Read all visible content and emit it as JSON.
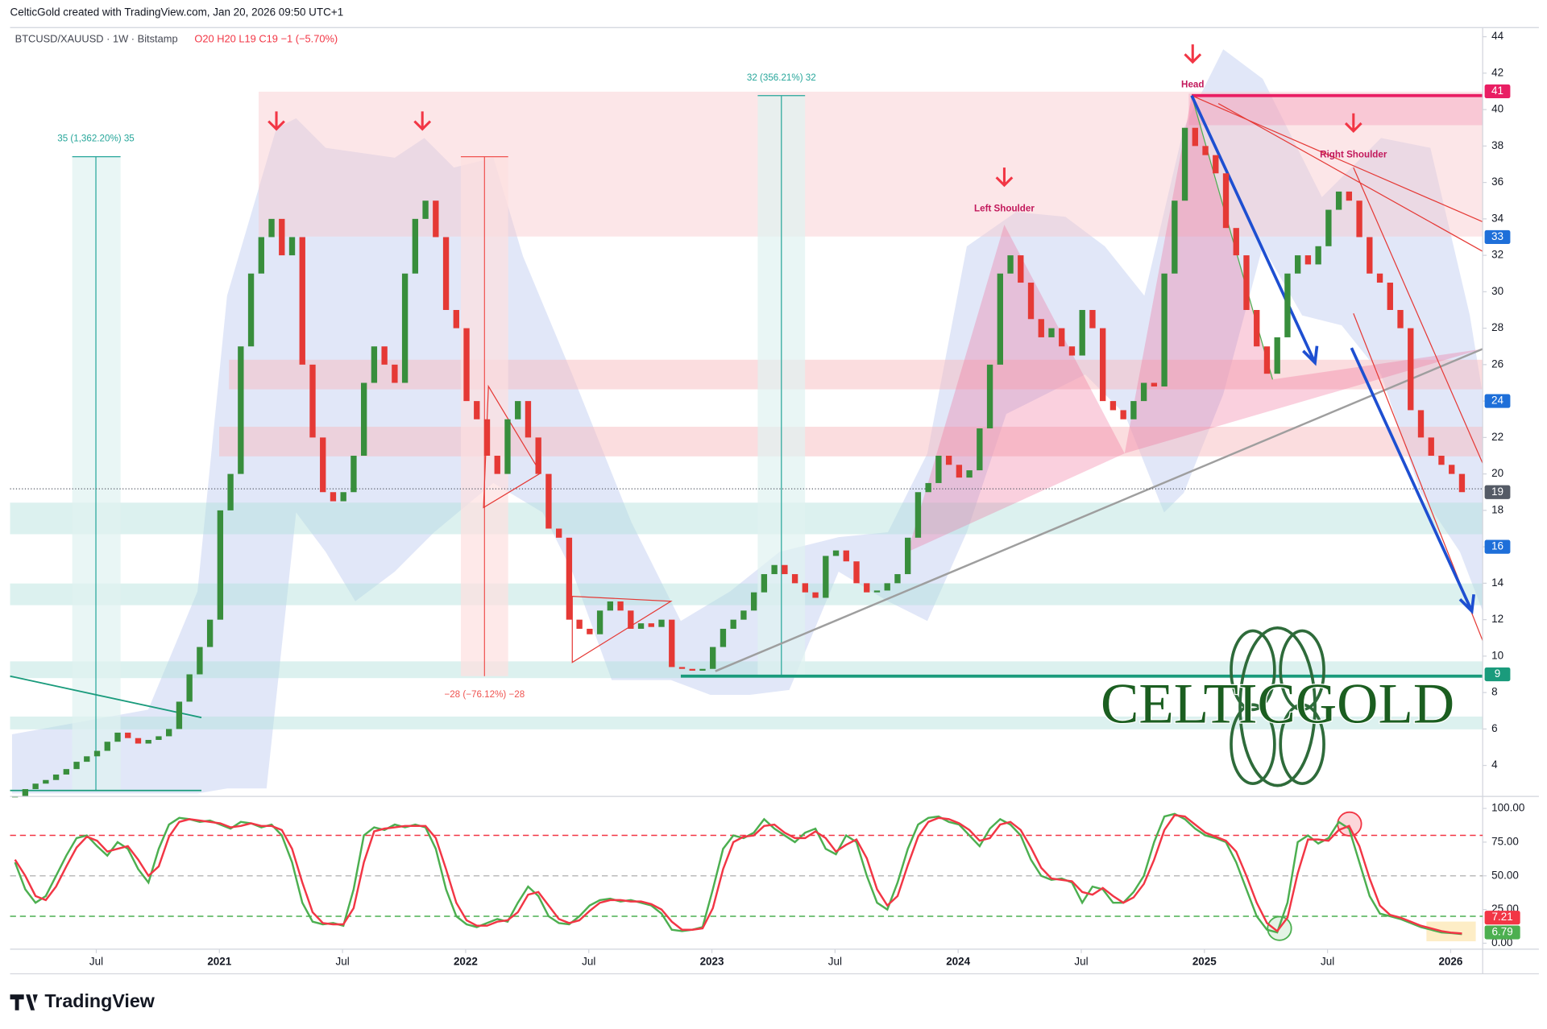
{
  "header": {
    "credit": "CelticGold created with TradingView.com, Jan 20, 2026 09:50 UTC+1",
    "symbol": "BTCUSD/XAUUSD · 1W · Bitstamp",
    "ohlc": "O20 H20 L19 C19 −1 (−5.70%)"
  },
  "chart_data": [
    {
      "type": "candlestick",
      "up_color": "#388e3c",
      "down_color": "#e53935",
      "values": [
        2.3,
        2.7,
        3.0,
        3.2,
        3.5,
        3.8,
        4.2,
        4.5,
        4.8,
        5.3,
        5.8,
        5.5,
        5.2,
        5.4,
        5.6,
        6.0,
        7.5,
        9.0,
        10.5,
        12.0,
        18,
        20,
        27,
        31,
        33,
        34,
        32,
        33,
        26,
        22,
        19,
        18.5,
        19,
        21,
        25,
        27,
        26,
        25,
        31,
        34,
        35,
        33,
        29,
        28,
        24,
        23,
        21,
        20,
        23,
        24,
        22,
        20,
        17,
        16.5,
        12,
        11.5,
        11.2,
        12.5,
        13,
        12.5,
        11.5,
        11.8,
        11.6,
        12,
        9.4,
        9.3,
        9.2,
        9.3,
        10.5,
        11.5,
        12,
        12.5,
        13.5,
        14.5,
        15,
        14.5,
        14,
        13.5,
        13.2,
        15.5,
        15.8,
        15.2,
        14,
        13.5,
        13.6,
        14,
        14.5,
        16.5,
        19,
        19.5,
        21,
        20.5,
        19.8,
        20.2,
        22.5,
        26,
        31,
        32,
        30.5,
        28.5,
        27.5,
        28,
        27,
        26.5,
        29,
        28,
        24,
        23.5,
        23,
        24,
        25,
        24.8,
        31,
        35,
        39,
        38,
        37.5,
        36.5,
        33.5,
        32,
        29,
        27,
        25.5,
        27.5,
        31,
        32,
        31.5,
        32.5,
        34.5,
        35.5,
        35,
        33,
        31,
        30.5,
        29,
        28,
        23.5,
        22,
        21,
        20.5,
        20,
        19
      ],
      "xlim": [
        2020.15,
        2026.13
      ],
      "xticks": [
        {
          "value": 2020.5,
          "label": "Jul"
        },
        2021,
        {
          "value": 2021.5,
          "label": "Jul"
        },
        2022,
        {
          "value": 2022.5,
          "label": "Jul"
        },
        2023,
        {
          "value": 2023.5,
          "label": "Jul"
        },
        2024,
        {
          "value": 2024.5,
          "label": "Jul"
        },
        2025,
        {
          "value": 2025.5,
          "label": "Jul"
        },
        2026
      ],
      "ylim": [
        2.3,
        44.5
      ],
      "yticks": [
        4,
        6,
        8,
        10,
        12,
        14,
        16,
        18,
        20,
        22,
        24,
        26,
        28,
        30,
        32,
        34,
        36,
        38,
        40,
        42,
        44
      ],
      "levels": [
        {
          "value": 41,
          "color": "#e91e63"
        },
        {
          "value": 33,
          "color": "#1e6fd9"
        },
        {
          "value": 24,
          "color": "#1e6fd9"
        },
        {
          "value": 19,
          "color": "#555b66"
        },
        {
          "value": 16,
          "color": "#1e6fd9"
        },
        {
          "value": 9,
          "color": "#1a9b7c"
        }
      ],
      "annotations": [
        "Head",
        "Left Shoulder",
        "Right Shoulder"
      ],
      "measurements": [
        "35 (1,362.20%) 35",
        "32 (356.21%) 32",
        "−28 (−76.12%) −28"
      ]
    },
    {
      "type": "line",
      "series": [
        {
          "color": "#4caf50",
          "values": [
            60,
            40,
            30,
            35,
            50,
            65,
            78,
            80,
            72,
            65,
            75,
            70,
            55,
            45,
            70,
            88,
            93,
            92,
            90,
            91,
            88,
            85,
            90,
            89,
            86,
            88,
            80,
            60,
            30,
            16,
            14,
            15,
            13,
            40,
            80,
            86,
            84,
            88,
            86,
            88,
            86,
            70,
            40,
            20,
            14,
            12,
            15,
            18,
            16,
            30,
            42,
            35,
            20,
            15,
            14,
            20,
            28,
            32,
            33,
            31,
            32,
            30,
            28,
            22,
            10,
            9,
            10,
            12,
            40,
            70,
            80,
            78,
            82,
            92,
            85,
            80,
            75,
            82,
            85,
            70,
            66,
            80,
            75,
            50,
            30,
            25,
            45,
            70,
            88,
            93,
            94,
            90,
            88,
            80,
            72,
            85,
            92,
            88,
            80,
            62,
            50,
            47,
            48,
            45,
            30,
            42,
            40,
            30,
            30,
            38,
            50,
            75,
            94,
            96,
            92,
            85,
            80,
            78,
            75,
            60,
            40,
            20,
            10,
            8,
            30,
            75,
            80,
            74,
            78,
            90,
            85,
            60,
            35,
            22,
            20,
            18,
            15,
            12,
            10,
            8,
            7.5,
            6.79
          ]
        },
        {
          "color": "#f23645",
          "values": [
            62,
            50,
            35,
            32,
            42,
            57,
            71,
            79,
            76,
            68,
            70,
            72,
            62,
            50,
            57,
            79,
            90,
            92,
            91,
            90,
            89,
            86,
            87,
            89,
            87,
            87,
            84,
            70,
            45,
            23,
            15,
            14,
            14,
            26,
            60,
            83,
            85,
            86,
            87,
            87,
            87,
            78,
            55,
            30,
            17,
            13,
            13,
            16,
            17,
            23,
            36,
            38,
            28,
            18,
            15,
            17,
            24,
            30,
            32,
            32,
            31,
            31,
            29,
            25,
            16,
            10,
            10,
            11,
            26,
            55,
            75,
            79,
            80,
            87,
            88,
            82,
            78,
            78,
            83,
            78,
            68,
            73,
            77,
            63,
            40,
            28,
            35,
            58,
            79,
            90,
            93,
            92,
            89,
            84,
            76,
            78,
            88,
            90,
            84,
            71,
            56,
            48,
            47,
            46,
            38,
            36,
            41,
            35,
            30,
            34,
            44,
            62,
            84,
            95,
            94,
            88,
            82,
            79,
            76,
            68,
            50,
            30,
            15,
            9,
            19,
            52,
            77,
            77,
            76,
            84,
            87,
            72,
            48,
            28,
            21,
            19,
            16,
            13,
            11,
            9,
            7.8,
            7.21
          ]
        }
      ],
      "ylim": [
        -4.4,
        106
      ],
      "yticks": [
        {
          "value": 100,
          "label": "100.00"
        },
        {
          "value": 75,
          "label": "75.00"
        },
        {
          "value": 50,
          "label": "50.00"
        },
        {
          "value": 25,
          "label": "25.00"
        },
        {
          "value": 0,
          "label": "0.00"
        }
      ],
      "bands": [
        {
          "value": 80,
          "color": "#f23645"
        },
        {
          "value": 50,
          "color": "#bbbbbb"
        },
        {
          "value": 20,
          "color": "#4caf50"
        }
      ]
    }
  ],
  "logo": "CELTICGOLD",
  "footer": "TradingView"
}
